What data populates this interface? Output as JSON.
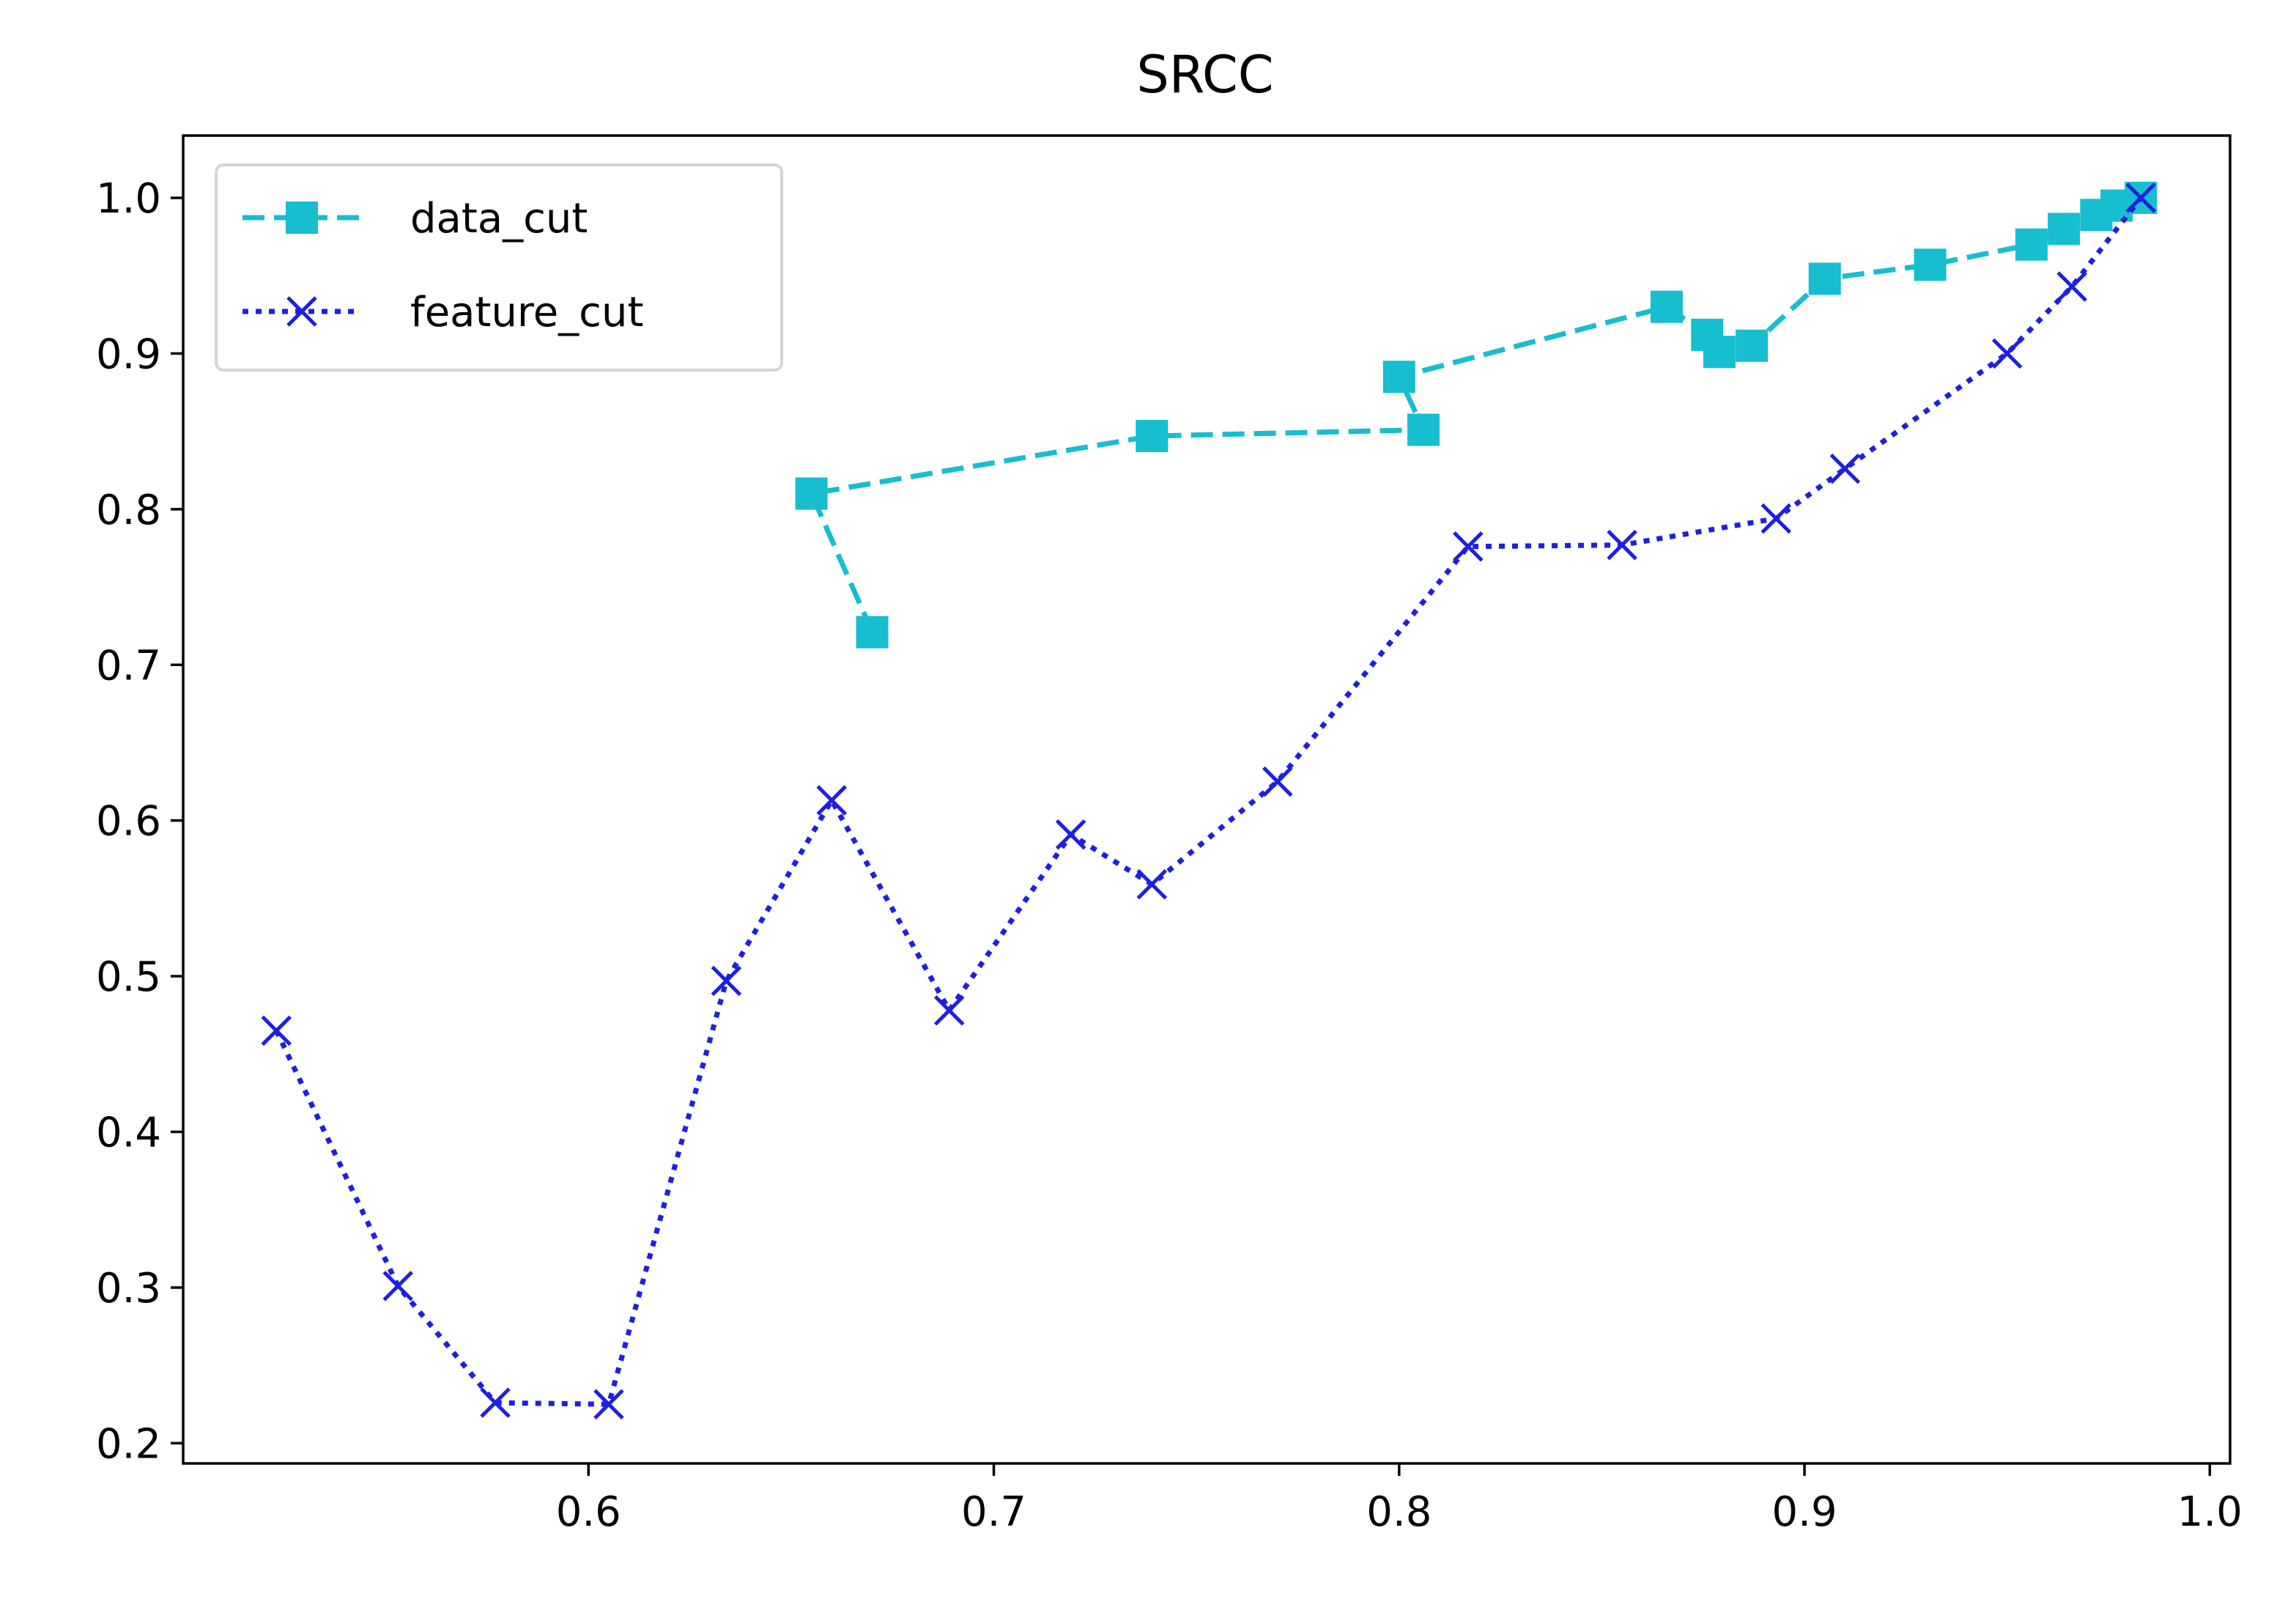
{
  "chart_data": {
    "type": "line",
    "title": "SRCC",
    "xlabel": "",
    "ylabel": "",
    "xlim": [
      0.5,
      1.005
    ],
    "ylim": [
      0.187,
      1.04
    ],
    "x_ticks": [
      "0.6",
      "0.7",
      "0.8",
      "0.9",
      "1.0"
    ],
    "y_ticks": [
      "0.2",
      "0.3",
      "0.4",
      "0.5",
      "0.6",
      "0.7",
      "0.8",
      "0.9",
      "1.0"
    ],
    "grid": false,
    "legend_position": "top-left",
    "series": [
      {
        "name": "data_cut",
        "color": "#17becf",
        "line_style": "dashed",
        "marker": "square",
        "x": [
          0.67,
          0.655,
          0.739,
          0.806,
          0.8,
          0.866,
          0.876,
          0.879,
          0.887,
          0.905,
          0.931,
          0.956,
          0.964,
          0.972,
          0.977,
          0.983
        ],
        "y": [
          0.721,
          0.81,
          0.847,
          0.851,
          0.885,
          0.93,
          0.912,
          0.901,
          0.905,
          0.948,
          0.957,
          0.97,
          0.98,
          0.989,
          0.995,
          1.0
        ]
      },
      {
        "name": "feature_cut",
        "color": "#1f1fe0",
        "line_style": "dotted",
        "marker": "x",
        "x": [
          0.523,
          0.553,
          0.577,
          0.605,
          0.634,
          0.66,
          0.689,
          0.719,
          0.739,
          0.77,
          0.817,
          0.855,
          0.893,
          0.91,
          0.95,
          0.966,
          0.983
        ],
        "y": [
          0.465,
          0.301,
          0.226,
          0.225,
          0.497,
          0.613,
          0.478,
          0.591,
          0.559,
          0.625,
          0.776,
          0.777,
          0.794,
          0.826,
          0.9,
          0.943,
          1.0
        ]
      }
    ]
  }
}
